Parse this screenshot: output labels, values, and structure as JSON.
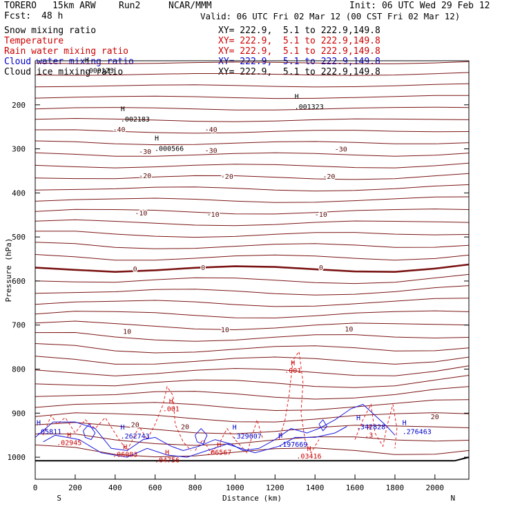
{
  "header": {
    "model": "TORERO",
    "resolution": "15km ARW",
    "run": "Run2",
    "org": "NCAR/MMM",
    "init": "Init: 06 UTC Wed 29 Feb 12",
    "fcst_label": "Fcst:",
    "fcst_value": "48 h",
    "valid": "Valid: 06 UTC Fri 02 Mar 12 (00 CST Fri 02 Mar 12)"
  },
  "legend": [
    {
      "name": "Snow mixing ratio",
      "xy": "XY= 222.9,  5.1 to 222.9,149.8",
      "color": "#000000"
    },
    {
      "name": "Temperature",
      "xy": "XY= 222.9,  5.1 to 222.9,149.8",
      "color": "#cc0000"
    },
    {
      "name": "Rain water mixing ratio",
      "xy": "XY= 222.9,  5.1 to 222.9,149.8",
      "color": "#cc0000"
    },
    {
      "name": "Cloud water mixing ratio",
      "xy": "XY= 222.9,  5.1 to 222.9,149.8",
      "color": "#0000cc"
    },
    {
      "name": "Cloud ice mixing ratio",
      "xy": "XY= 222.9,  5.1 to 222.9,149.8",
      "color": "#000000"
    }
  ],
  "chart_data": {
    "type": "cross-section contour",
    "xlabel": "Distance (km)",
    "ylabel": "Pressure (hPa)",
    "xlim": [
      0,
      2170
    ],
    "ylim": [
      1050,
      100
    ],
    "x_ticks": [
      0,
      200,
      400,
      600,
      800,
      1000,
      1200,
      1400,
      1600,
      1800,
      2000
    ],
    "y_ticks": [
      200,
      300,
      400,
      500,
      600,
      700,
      800,
      900,
      1000
    ],
    "y_tick_labels": [
      "200",
      "300",
      "400",
      "500",
      "600",
      "700",
      "800",
      "900",
      "1000"
    ],
    "south_label": "S",
    "north_label": "N",
    "temperature_labels": [
      {
        "text": "-40",
        "x": 420,
        "p": 255
      },
      {
        "text": "-40",
        "x": 880,
        "p": 255
      },
      {
        "text": "-30",
        "x": 550,
        "p": 305
      },
      {
        "text": "-30",
        "x": 880,
        "p": 303
      },
      {
        "text": "-30",
        "x": 1530,
        "p": 300
      },
      {
        "text": "-20",
        "x": 550,
        "p": 360
      },
      {
        "text": "-20",
        "x": 960,
        "p": 362
      },
      {
        "text": "-20",
        "x": 1470,
        "p": 362
      },
      {
        "text": "-10",
        "x": 530,
        "p": 445
      },
      {
        "text": "-10",
        "x": 890,
        "p": 448
      },
      {
        "text": "-10",
        "x": 1430,
        "p": 448
      },
      {
        "text": "0",
        "x": 500,
        "p": 572
      },
      {
        "text": "0",
        "x": 840,
        "p": 569
      },
      {
        "text": "0",
        "x": 1430,
        "p": 569
      },
      {
        "text": "10",
        "x": 460,
        "p": 714
      },
      {
        "text": "10",
        "x": 950,
        "p": 710
      },
      {
        "text": "10",
        "x": 1570,
        "p": 708
      },
      {
        "text": "20",
        "x": 500,
        "p": 925
      },
      {
        "text": "20",
        "x": 750,
        "p": 930
      },
      {
        "text": "20",
        "x": 2000,
        "p": 907
      }
    ],
    "snow_maxima": [
      {
        "text": ".000123",
        "x": 310,
        "p": 123
      },
      {
        "text": ".002183",
        "x": 490,
        "p": 233
      },
      {
        "text": ".000566",
        "x": 660,
        "p": 300
      },
      {
        "text": ".001323",
        "x": 1360,
        "p": 205
      }
    ],
    "rain_labels": [
      {
        "text": ".001",
        "x": 1290,
        "p": 791
      },
      {
        "text": ".001",
        "x": 680,
        "p": 878
      },
      {
        "text": ".02945",
        "x": 170,
        "p": 955
      },
      {
        "text": ".06083",
        "x": 450,
        "p": 982
      },
      {
        "text": ".04756",
        "x": 660,
        "p": 994
      },
      {
        "text": ".06567",
        "x": 920,
        "p": 977
      },
      {
        "text": ".03416",
        "x": 1370,
        "p": 986
      },
      {
        "text": ".3",
        "x": 1670,
        "p": 938
      }
    ],
    "cloud_water_labels": [
      {
        "text": ".05811",
        "x": 0,
        "p": 946
      },
      {
        "text": ".262743",
        "x": 420,
        "p": 956
      },
      {
        "text": ".329607",
        "x": 980,
        "p": 956
      },
      {
        "text": ".197669",
        "x": 1210,
        "p": 975
      },
      {
        "text": ".342828",
        "x": 1600,
        "p": 935
      },
      {
        "text": ".276463",
        "x": 1830,
        "p": 946
      }
    ],
    "ground_pressure_hPa": 1008
  }
}
